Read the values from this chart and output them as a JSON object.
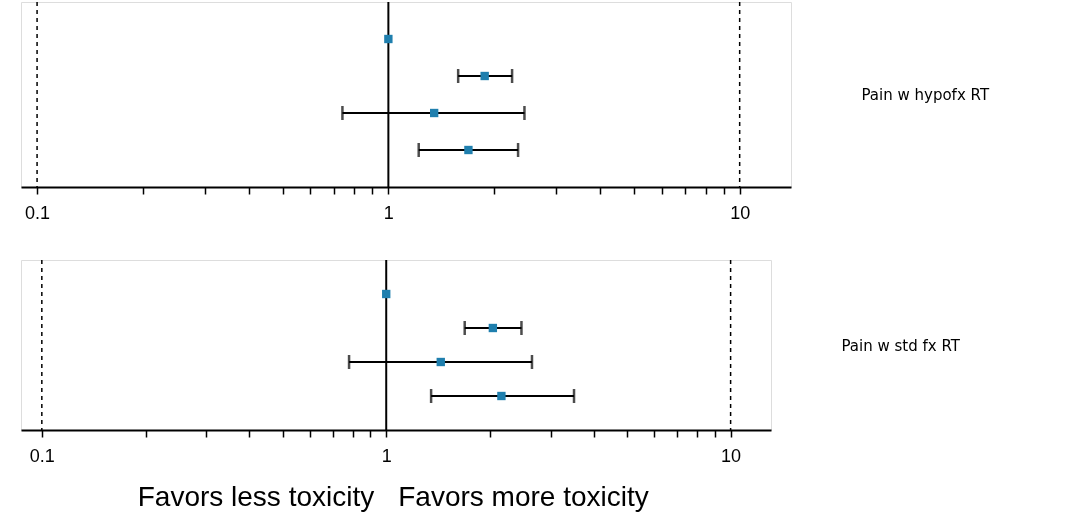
{
  "chart_data": [
    {
      "type": "scatter",
      "orientation": "horizontal",
      "ylabel": "Pain w hypofx RT",
      "categories": [
        null,
        null,
        null,
        null
      ],
      "values": [
        1.0,
        1.88,
        1.35,
        1.69
      ],
      "color": "#1f7fae",
      "errors": [
        null,
        [
          1.58,
          2.25
        ],
        [
          0.74,
          2.44
        ],
        [
          1.22,
          2.34
        ]
      ],
      "log": "x",
      "xlim": [
        0.09,
        14
      ],
      "xticks": [
        0.1,
        {
          "value": 0.2,
          "label": null
        },
        {
          "value": 0.3,
          "label": null
        },
        {
          "value": 0.4,
          "label": null
        },
        {
          "value": 0.5,
          "label": null
        },
        {
          "value": 0.6,
          "label": null
        },
        {
          "value": 0.7,
          "label": null
        },
        {
          "value": 0.8,
          "label": null
        },
        {
          "value": 0.9,
          "label": null
        },
        1,
        {
          "value": 2,
          "label": null
        },
        {
          "value": 3,
          "label": null
        },
        {
          "value": 4,
          "label": null
        },
        {
          "value": 5,
          "label": null
        },
        {
          "value": 6,
          "label": null
        },
        {
          "value": 7,
          "label": null
        },
        {
          "value": 8,
          "label": null
        },
        {
          "value": 9,
          "label": null
        },
        10
      ],
      "ref_lines": [
        {
          "axis": "x",
          "value": 1,
          "line_style": "solid"
        },
        {
          "axis": "x",
          "value": 0.1,
          "line_style": "dashed"
        },
        {
          "axis": "x",
          "value": 10,
          "line_style": "dashed"
        }
      ],
      "marker": "square",
      "grid": false,
      "tick_labels": "x"
    },
    {
      "type": "scatter",
      "orientation": "horizontal",
      "ylabel": "Pain w std fx RT",
      "categories": [
        null,
        null,
        null,
        null
      ],
      "values": [
        1.0,
        2.04,
        1.44,
        2.16
      ],
      "color": "#1f7fae",
      "errors": [
        null,
        [
          1.69,
          2.47
        ],
        [
          0.78,
          2.65
        ],
        [
          1.35,
          3.51
        ]
      ],
      "log": "x",
      "xlim": [
        0.087,
        13.1
      ],
      "xticks": [
        0.1,
        {
          "value": 0.2,
          "label": null
        },
        {
          "value": 0.3,
          "label": null
        },
        {
          "value": 0.4,
          "label": null
        },
        {
          "value": 0.5,
          "label": null
        },
        {
          "value": 0.6,
          "label": null
        },
        {
          "value": 0.7,
          "label": null
        },
        {
          "value": 0.8,
          "label": null
        },
        {
          "value": 0.9,
          "label": null
        },
        1,
        {
          "value": 2,
          "label": null
        },
        {
          "value": 3,
          "label": null
        },
        {
          "value": 4,
          "label": null
        },
        {
          "value": 5,
          "label": null
        },
        {
          "value": 6,
          "label": null
        },
        {
          "value": 7,
          "label": null
        },
        {
          "value": 8,
          "label": null
        },
        {
          "value": 9,
          "label": null
        },
        10
      ],
      "ref_lines": [
        {
          "axis": "x",
          "value": 1,
          "line_style": "solid"
        },
        {
          "axis": "x",
          "value": 0.1,
          "line_style": "dashed"
        },
        {
          "axis": "x",
          "value": 10,
          "line_style": "dashed"
        }
      ],
      "marker": "square",
      "grid": false,
      "tick_labels": "x",
      "annotations": [
        "Favors less toxicity",
        "Favors more toxicity"
      ]
    }
  ]
}
